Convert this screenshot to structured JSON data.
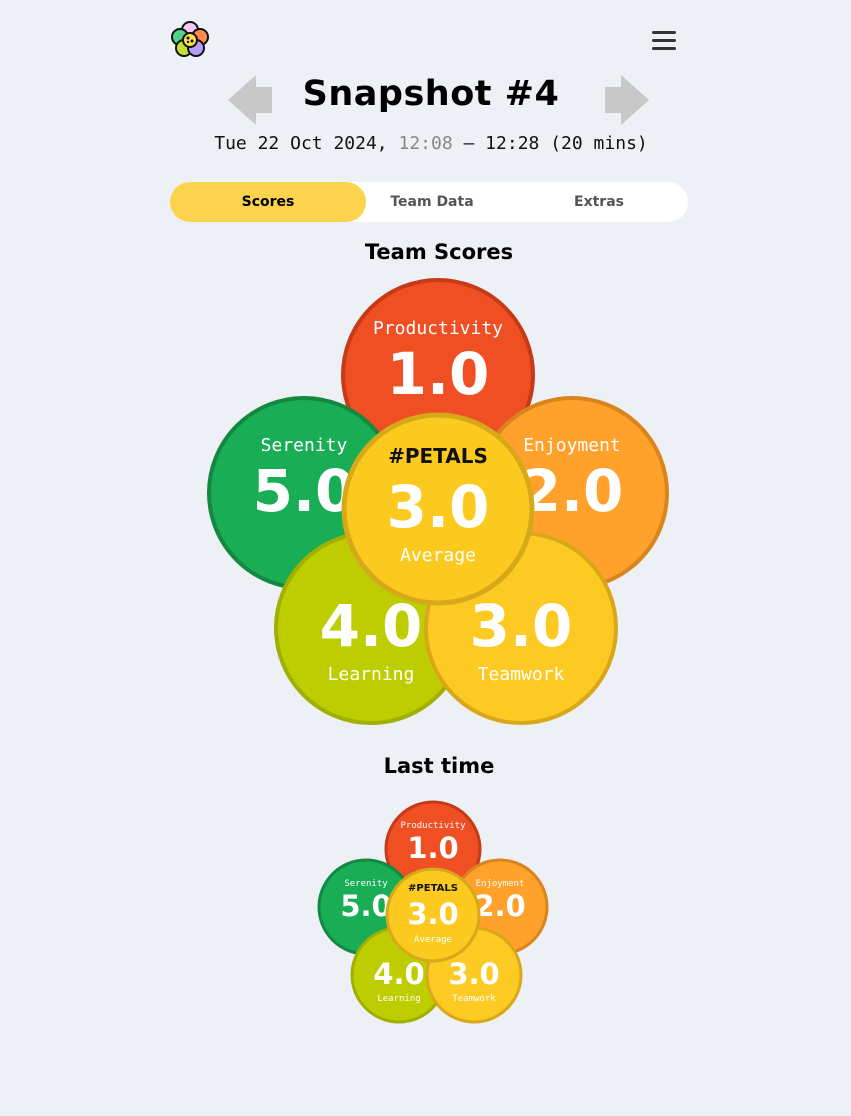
{
  "header": {
    "logo_icon": "petals-flower-logo",
    "menu_icon": "hamburger-menu-icon",
    "prev_icon": "arrow-left-icon",
    "next_icon": "arrow-right-icon"
  },
  "snapshot": {
    "title": "Snapshot #4",
    "date_prefix": "Tue 22 Oct 2024, ",
    "start_time": "12:08",
    "end_time": " – 12:28 (20 mins)"
  },
  "tabs": [
    {
      "label": "Scores",
      "active": true
    },
    {
      "label": "Team Data",
      "active": false
    },
    {
      "label": "Extras",
      "active": false
    }
  ],
  "team_scores": {
    "title": "Team Scores",
    "petals": {
      "productivity": {
        "label": "Productivity",
        "value": "1.0"
      },
      "enjoyment": {
        "label": "Enjoyment",
        "value": "2.0"
      },
      "serenity": {
        "label": "Serenity",
        "value": "5.0"
      },
      "learning": {
        "label": "Learning",
        "value": "4.0"
      },
      "teamwork": {
        "label": "Teamwork",
        "value": "3.0"
      }
    },
    "center": {
      "brand": "#PETALS",
      "value": "3.0",
      "label": "Average"
    }
  },
  "last_time": {
    "title": "Last time",
    "petals": {
      "productivity": {
        "label": "Productivity",
        "value": "1.0"
      },
      "enjoyment": {
        "label": "Enjoyment",
        "value": "2.0"
      },
      "serenity": {
        "label": "Serenity",
        "value": "5.0"
      },
      "learning": {
        "label": "Learning",
        "value": "4.0"
      },
      "teamwork": {
        "label": "Teamwork",
        "value": "3.0"
      }
    },
    "center": {
      "brand": "#PETALS",
      "value": "3.0",
      "label": "Average"
    }
  },
  "colors": {
    "background": "#edf1f5",
    "active_tab": "#fcd34d",
    "productivity": "#f04e23",
    "enjoyment": "#ffa12a",
    "serenity": "#19ad55",
    "learning": "#bdcd00",
    "teamwork": "#fdc923",
    "average": "#fcca1e"
  }
}
